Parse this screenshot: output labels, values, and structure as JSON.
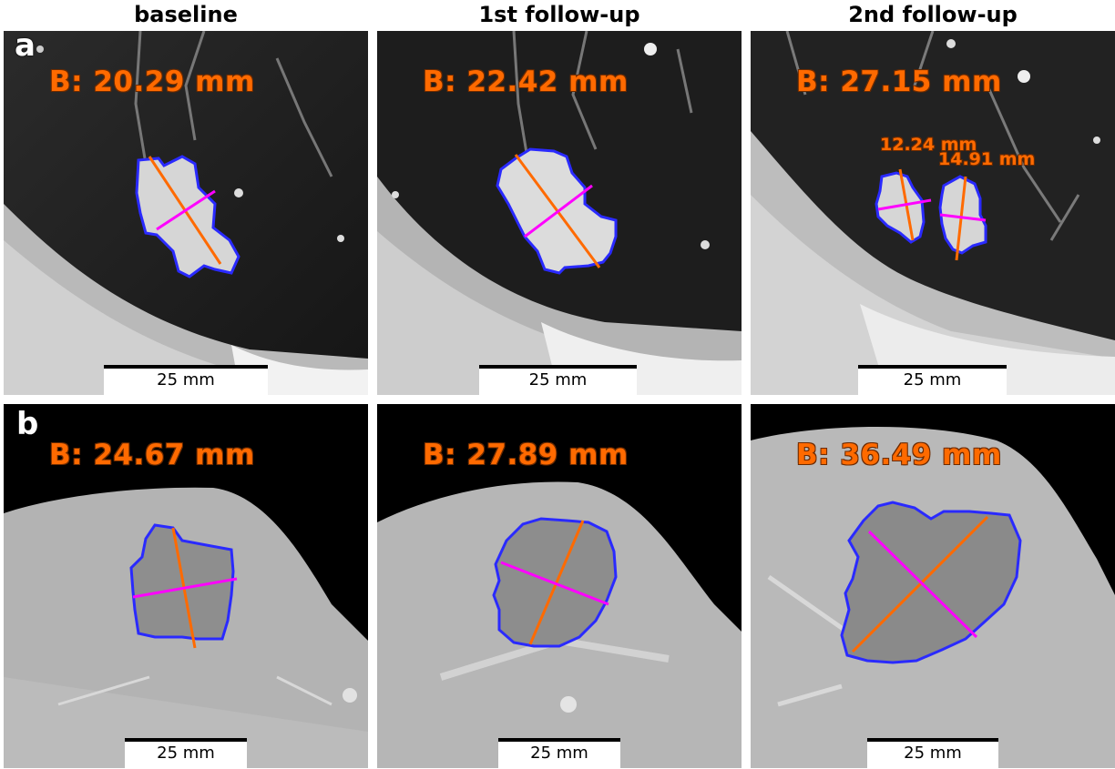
{
  "columns": [
    "baseline",
    "1st follow-up",
    "2nd follow-up"
  ],
  "rows": [
    "a",
    "b"
  ],
  "scale_label": "25 mm",
  "panels": {
    "a1": {
      "measurement": "B: 20.29 mm"
    },
    "a2": {
      "measurement": "B: 22.42 mm"
    },
    "a3": {
      "measurement": "B: 27.15 mm",
      "sub1": "12.24 mm",
      "sub2": "14.91 mm"
    },
    "b1": {
      "measurement": "B: 24.67 mm"
    },
    "b2": {
      "measurement": "B: 27.89 mm"
    },
    "b3": {
      "measurement": "B: 36.49 mm"
    }
  },
  "colors": {
    "contour": "#2a2aff",
    "long_axis": "#ff6a00",
    "short_axis": "#ff00ff",
    "measurement_text": "#ff6a00"
  }
}
